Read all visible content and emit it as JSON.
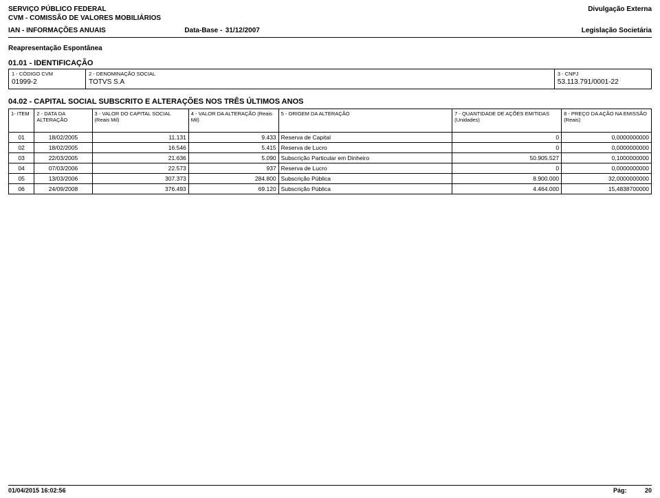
{
  "header": {
    "line1_left": "SERVIÇO PÚBLICO FEDERAL",
    "line1_right": "Divulgação Externa",
    "line2": "CVM - COMISSÃO DE VALORES MOBILIÁRIOS",
    "line3_left": "IAN - INFORMAÇÕES ANUAIS",
    "line3_mid_label": "Data-Base -",
    "line3_mid_value": "31/12/2007",
    "line3_right": "Legislação Societária",
    "reap": "Reapresentação Espontânea"
  },
  "sections": {
    "id_title": "01.01 - IDENTIFICAÇÃO",
    "cap_title": "04.02 - CAPITAL SOCIAL SUBSCRITO E ALTERAÇÕES NOS TRÊS ÚLTIMOS ANOS"
  },
  "id_table": {
    "col1_label": "1 - CÓDIGO CVM",
    "col1_value": "01999-2",
    "col2_label": "2 - DENOMINAÇÃO SOCIAL",
    "col2_value": "TOTVS S.A",
    "col3_label": "3 - CNPJ",
    "col3_value": "53.113.791/0001-22"
  },
  "cap_table": {
    "col_widths_pct": [
      4,
      9,
      15,
      14,
      27,
      17,
      14
    ],
    "headers": [
      "1- ITEM",
      "2 - DATA DA ALTERAÇÃO",
      "3 - VALOR DO CAPITAL SOCIAL (Reais Mil)",
      "4 - VALOR DA ALTERAÇÃO (Reais Mil)",
      "5 - ORIGEM DA ALTERAÇÃO",
      "7 - QUANTIDADE DE AÇÕES EMITIDAS (Unidades)",
      "8 - PREÇO DA AÇÃO NA EMISSÃO (Reais)"
    ],
    "rows": [
      {
        "item": "01",
        "data": "18/02/2005",
        "capital": "11.131",
        "alter": "9.433",
        "origem": "Reserva de Capital",
        "qtd": "0",
        "preco": "0,0000000000"
      },
      {
        "item": "02",
        "data": "18/02/2005",
        "capital": "16.546",
        "alter": "5.415",
        "origem": "Reserva de Lucro",
        "qtd": "0",
        "preco": "0,0000000000"
      },
      {
        "item": "03",
        "data": "22/03/2005",
        "capital": "21.636",
        "alter": "5.090",
        "origem": "Subscrição Particular em Dinheiro",
        "qtd": "50.905.527",
        "preco": "0,1000000000"
      },
      {
        "item": "04",
        "data": "07/03/2006",
        "capital": "22.573",
        "alter": "937",
        "origem": "Reserva de Lucro",
        "qtd": "0",
        "preco": "0,0000000000"
      },
      {
        "item": "05",
        "data": "13/03/2006",
        "capital": "307.373",
        "alter": "284.800",
        "origem": "Subscrição Pública",
        "qtd": "8.900.000",
        "preco": "32,0000000000"
      },
      {
        "item": "06",
        "data": "24/09/2008",
        "capital": "376.493",
        "alter": "69.120",
        "origem": "Subscrição Pública",
        "qtd": "4.464.000",
        "preco": "15,4838700000"
      }
    ]
  },
  "footer": {
    "left": "01/04/2015 16:02:56",
    "right_label": "Pág:",
    "right_value": "20"
  }
}
